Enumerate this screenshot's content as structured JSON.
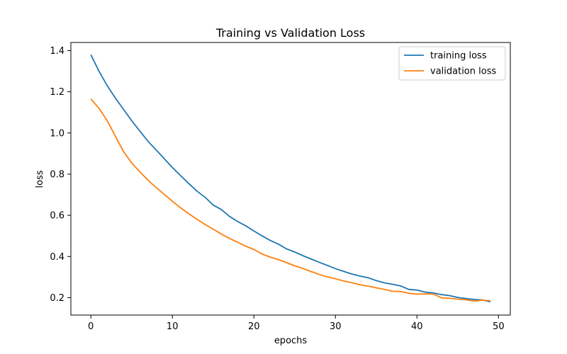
{
  "chart_data": {
    "type": "line",
    "title": "Training vs Validation Loss",
    "xlabel": "epochs",
    "ylabel": "loss",
    "xlim": [
      -2.45,
      51.45
    ],
    "ylim": [
      0.1155,
      1.4395
    ],
    "xticks": [
      0,
      10,
      20,
      30,
      40,
      50
    ],
    "yticks": [
      0.2,
      0.4,
      0.6,
      0.8,
      1.0,
      1.2,
      1.4
    ],
    "xtick_labels": [
      "0",
      "10",
      "20",
      "30",
      "40",
      "50"
    ],
    "ytick_labels": [
      "0.2",
      "0.4",
      "0.6",
      "0.8",
      "1.0",
      "1.2",
      "1.4"
    ],
    "grid": false,
    "legend_position": "top-right",
    "x": [
      0,
      1,
      2,
      3,
      4,
      5,
      6,
      7,
      8,
      9,
      10,
      11,
      12,
      13,
      14,
      15,
      16,
      17,
      18,
      19,
      20,
      21,
      22,
      23,
      24,
      25,
      26,
      27,
      28,
      29,
      30,
      31,
      32,
      33,
      34,
      35,
      36,
      37,
      38,
      39,
      40,
      41,
      42,
      43,
      44,
      45,
      46,
      47,
      48,
      49
    ],
    "series": [
      {
        "name": "training loss",
        "color": "#1f77b4",
        "values": [
          1.38,
          1.3,
          1.23,
          1.17,
          1.115,
          1.06,
          1.01,
          0.96,
          0.918,
          0.875,
          0.832,
          0.793,
          0.755,
          0.718,
          0.688,
          0.65,
          0.628,
          0.595,
          0.57,
          0.549,
          0.524,
          0.5,
          0.478,
          0.46,
          0.437,
          0.422,
          0.404,
          0.388,
          0.372,
          0.357,
          0.341,
          0.328,
          0.315,
          0.305,
          0.297,
          0.283,
          0.272,
          0.265,
          0.257,
          0.24,
          0.237,
          0.227,
          0.223,
          0.215,
          0.21,
          0.201,
          0.196,
          0.191,
          0.189,
          0.18
        ]
      },
      {
        "name": "validation loss",
        "color": "#ff7f0e",
        "values": [
          1.165,
          1.12,
          1.06,
          0.985,
          0.91,
          0.855,
          0.812,
          0.771,
          0.735,
          0.702,
          0.668,
          0.637,
          0.608,
          0.581,
          0.556,
          0.533,
          0.509,
          0.488,
          0.469,
          0.45,
          0.434,
          0.412,
          0.397,
          0.385,
          0.37,
          0.355,
          0.342,
          0.327,
          0.313,
          0.301,
          0.292,
          0.281,
          0.273,
          0.263,
          0.256,
          0.248,
          0.24,
          0.231,
          0.23,
          0.221,
          0.217,
          0.218,
          0.218,
          0.199,
          0.197,
          0.193,
          0.19,
          0.183,
          0.188,
          0.185
        ]
      }
    ]
  }
}
